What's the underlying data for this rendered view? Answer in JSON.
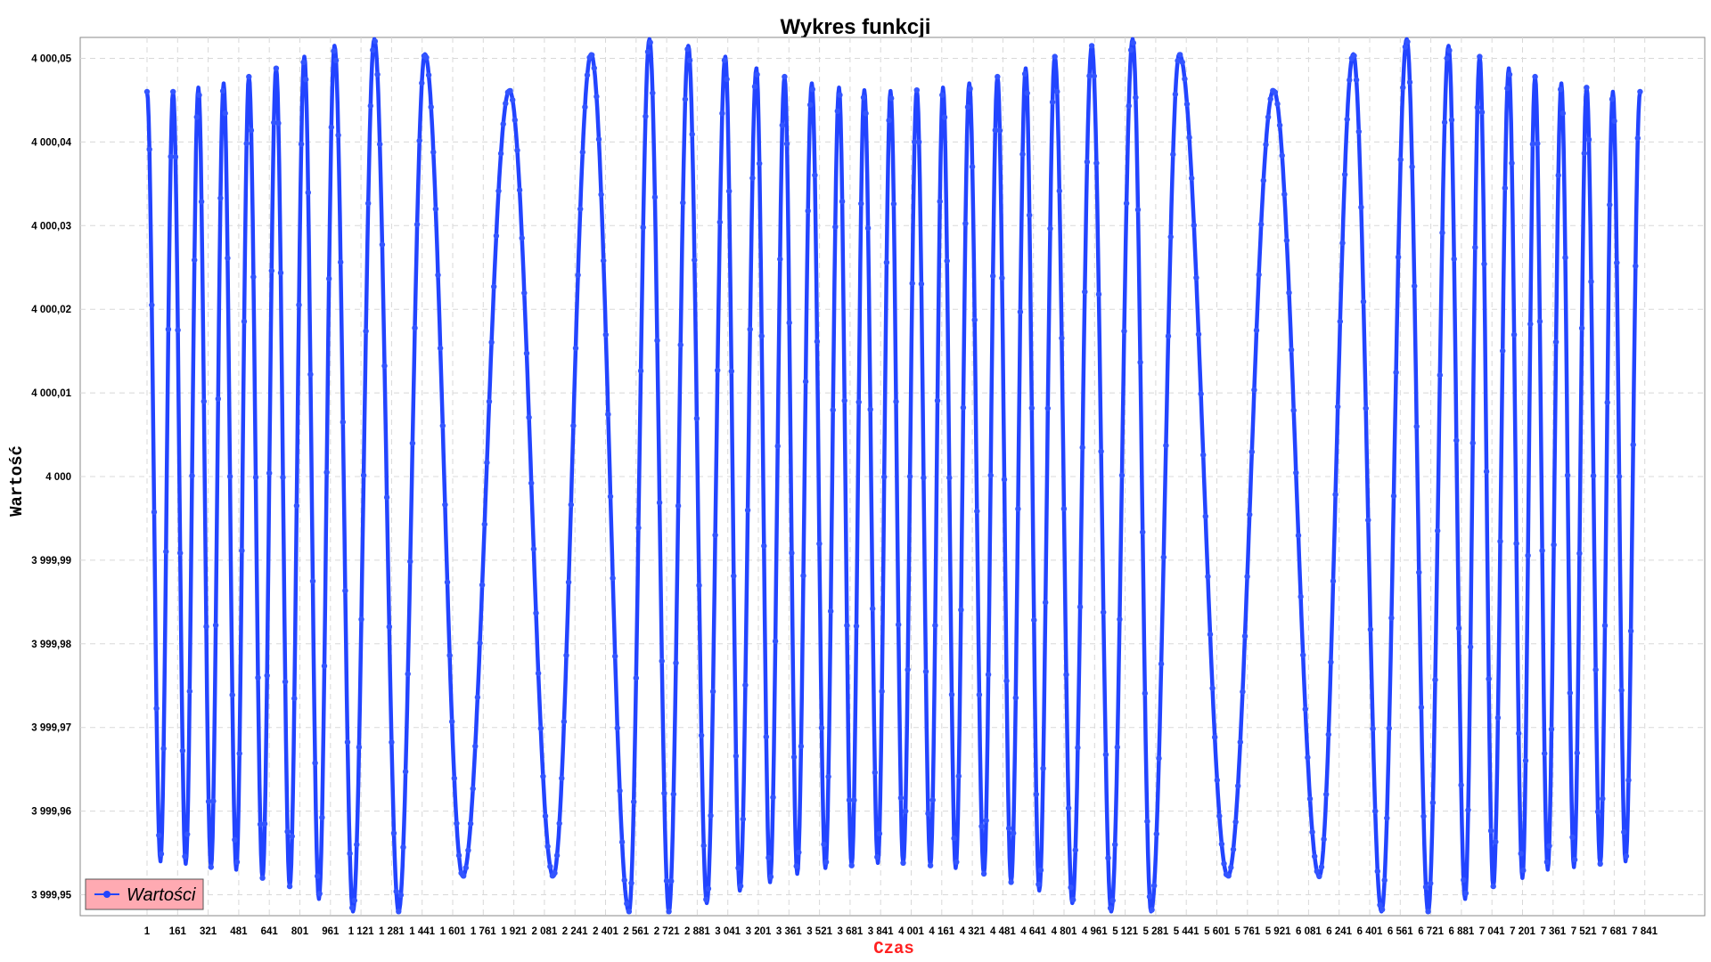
{
  "chart_data": {
    "type": "line",
    "title": "Wykres funkcji",
    "xlabel": "Czas",
    "ylabel": "Wartość",
    "xlim": [
      1,
      8001
    ],
    "ylim": [
      3999.9475,
      4000.0525
    ],
    "y_ticks": [
      3999.95,
      3999.96,
      3999.97,
      3999.98,
      3999.99,
      4000,
      4000.01,
      4000.02,
      4000.03,
      4000.04,
      4000.05
    ],
    "y_tick_labels": [
      "3 999,95",
      "3 999,96",
      "3 999,97",
      "3 999,98",
      "3 999,99",
      "4 000",
      "4 000,01",
      "4 000,02",
      "4 000,03",
      "4 000,04",
      "4 000,05"
    ],
    "x_tick_labels": [
      "1",
      "161",
      "321",
      "481",
      "641",
      "801",
      "961",
      "1 121",
      "1 281",
      "1 441",
      "1 601",
      "1 761",
      "1 921",
      "2 081",
      "2 241",
      "2 401",
      "2 561",
      "2 721",
      "2 881",
      "3 041",
      "3 201",
      "3 361",
      "3 521",
      "3 681",
      "3 841",
      "4 001",
      "4 161",
      "4 321",
      "4 481",
      "4 641",
      "4 801",
      "4 961",
      "5 121",
      "5 281",
      "5 441",
      "5 601",
      "5 761",
      "5 921",
      "6 081",
      "6 241",
      "6 401",
      "6 561",
      "6 721",
      "6 881",
      "7 041",
      "7 201",
      "7 361",
      "7 521",
      "7 681",
      "7 841"
    ],
    "grid": true,
    "legend_position": "bottom-left",
    "series": [
      {
        "name": "Wartości",
        "color": "#1f3fff",
        "marker": "circle",
        "extrema": [
          {
            "x": 1,
            "y": 4000.046
          },
          {
            "x": 70,
            "y": 3999.954
          },
          {
            "x": 135,
            "y": 4000.046
          },
          {
            "x": 200,
            "y": 3999.9537
          },
          {
            "x": 265,
            "y": 4000.0465
          },
          {
            "x": 330,
            "y": 3999.9533
          },
          {
            "x": 395,
            "y": 4000.047
          },
          {
            "x": 460,
            "y": 3999.953
          },
          {
            "x": 525,
            "y": 4000.0478
          },
          {
            "x": 595,
            "y": 3999.952
          },
          {
            "x": 665,
            "y": 4000.0488
          },
          {
            "x": 735,
            "y": 3999.951
          },
          {
            "x": 810,
            "y": 4000.0502
          },
          {
            "x": 885,
            "y": 3999.9495
          },
          {
            "x": 965,
            "y": 4000.0515
          },
          {
            "x": 1060,
            "y": 3999.948
          },
          {
            "x": 1170,
            "y": 4000.0523
          },
          {
            "x": 1295,
            "y": 3999.948
          },
          {
            "x": 1430,
            "y": 4000.0505
          },
          {
            "x": 1625,
            "y": 3999.9522
          },
          {
            "x": 1865,
            "y": 4000.0462
          },
          {
            "x": 2090,
            "y": 3999.9522
          },
          {
            "x": 2285,
            "y": 4000.0505
          },
          {
            "x": 2480,
            "y": 3999.948
          },
          {
            "x": 2585,
            "y": 4000.0523
          },
          {
            "x": 2685,
            "y": 3999.948
          },
          {
            "x": 2785,
            "y": 4000.0515
          },
          {
            "x": 2880,
            "y": 3999.949
          },
          {
            "x": 2975,
            "y": 4000.0502
          },
          {
            "x": 3050,
            "y": 3999.9505
          },
          {
            "x": 3135,
            "y": 4000.0488
          },
          {
            "x": 3205,
            "y": 3999.9515
          },
          {
            "x": 3280,
            "y": 4000.0478
          },
          {
            "x": 3345,
            "y": 3999.9525
          },
          {
            "x": 3420,
            "y": 4000.047
          },
          {
            "x": 3490,
            "y": 3999.9532
          },
          {
            "x": 3560,
            "y": 4000.0465
          },
          {
            "x": 3625,
            "y": 3999.9535
          },
          {
            "x": 3690,
            "y": 4000.0462
          },
          {
            "x": 3760,
            "y": 3999.9538
          },
          {
            "x": 3825,
            "y": 4000.0461
          },
          {
            "x": 3890,
            "y": 3999.9538
          },
          {
            "x": 3960,
            "y": 4000.0462
          },
          {
            "x": 4030,
            "y": 3999.9535
          },
          {
            "x": 4095,
            "y": 4000.0465
          },
          {
            "x": 4160,
            "y": 3999.9532
          },
          {
            "x": 4230,
            "y": 4000.047
          },
          {
            "x": 4305,
            "y": 3999.9525
          },
          {
            "x": 4375,
            "y": 4000.0478
          },
          {
            "x": 4445,
            "y": 3999.9515
          },
          {
            "x": 4520,
            "y": 4000.0488
          },
          {
            "x": 4590,
            "y": 3999.9505
          },
          {
            "x": 4670,
            "y": 4000.0502
          },
          {
            "x": 4760,
            "y": 3999.949
          },
          {
            "x": 4860,
            "y": 4000.0515
          },
          {
            "x": 4960,
            "y": 3999.948
          },
          {
            "x": 5070,
            "y": 4000.0523
          },
          {
            "x": 5165,
            "y": 3999.948
          },
          {
            "x": 5310,
            "y": 4000.0505
          },
          {
            "x": 5560,
            "y": 3999.9522
          },
          {
            "x": 5795,
            "y": 4000.0462
          },
          {
            "x": 6030,
            "y": 3999.9522
          },
          {
            "x": 6205,
            "y": 4000.0505
          },
          {
            "x": 6350,
            "y": 3999.948
          },
          {
            "x": 6480,
            "y": 4000.0523
          },
          {
            "x": 6590,
            "y": 3999.948
          },
          {
            "x": 6695,
            "y": 4000.0515
          },
          {
            "x": 6780,
            "y": 3999.9495
          },
          {
            "x": 6855,
            "y": 4000.0502
          },
          {
            "x": 6925,
            "y": 3999.951
          },
          {
            "x": 7005,
            "y": 4000.0488
          },
          {
            "x": 7075,
            "y": 3999.952
          },
          {
            "x": 7140,
            "y": 4000.0478
          },
          {
            "x": 7205,
            "y": 3999.953
          },
          {
            "x": 7275,
            "y": 4000.047
          },
          {
            "x": 7340,
            "y": 3999.9533
          },
          {
            "x": 7405,
            "y": 4000.0465
          },
          {
            "x": 7475,
            "y": 3999.9537
          },
          {
            "x": 7540,
            "y": 4000.046
          },
          {
            "x": 7605,
            "y": 3999.954
          },
          {
            "x": 7680,
            "y": 4000.046
          }
        ]
      }
    ]
  }
}
